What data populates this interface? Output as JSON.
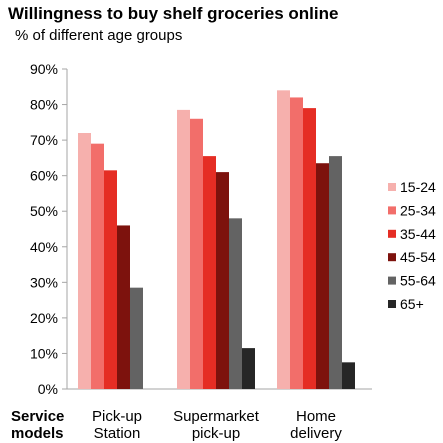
{
  "chart_data": {
    "type": "bar",
    "title": "Willingness to buy shelf groceries online",
    "subtitle": "% of different age groups",
    "xlabel": "Service models",
    "ylabel": "",
    "categories": [
      "Pick-up Station",
      "Supermarket pick-up",
      "Home delivery"
    ],
    "category_lines": [
      [
        "Pick-up",
        "Station"
      ],
      [
        "Supermarket",
        "pick-up"
      ],
      [
        "Home",
        "delivery"
      ]
    ],
    "xlabel_lines": [
      "Service",
      "models"
    ],
    "yticks": [
      "0%",
      "10%",
      "20%",
      "30%",
      "40%",
      "50%",
      "60%",
      "70%",
      "80%",
      "90%"
    ],
    "ylim": [
      0,
      90
    ],
    "grid": false,
    "legend_position": "right",
    "series": [
      {
        "name": "15-24",
        "color": "#f6b0ad",
        "values": [
          72,
          78.5,
          84
        ]
      },
      {
        "name": "25-34",
        "color": "#f26e6a",
        "values": [
          69,
          76,
          82
        ]
      },
      {
        "name": "35-44",
        "color": "#e52d24",
        "values": [
          61.5,
          65.5,
          79
        ]
      },
      {
        "name": "45-54",
        "color": "#7d120d",
        "values": [
          46,
          61,
          63.5
        ]
      },
      {
        "name": "55-64",
        "color": "#636363",
        "values": [
          28.5,
          48,
          65.5
        ]
      },
      {
        "name": "65+",
        "color": "#262626",
        "values": [
          0,
          11.5,
          7.5
        ]
      }
    ]
  }
}
